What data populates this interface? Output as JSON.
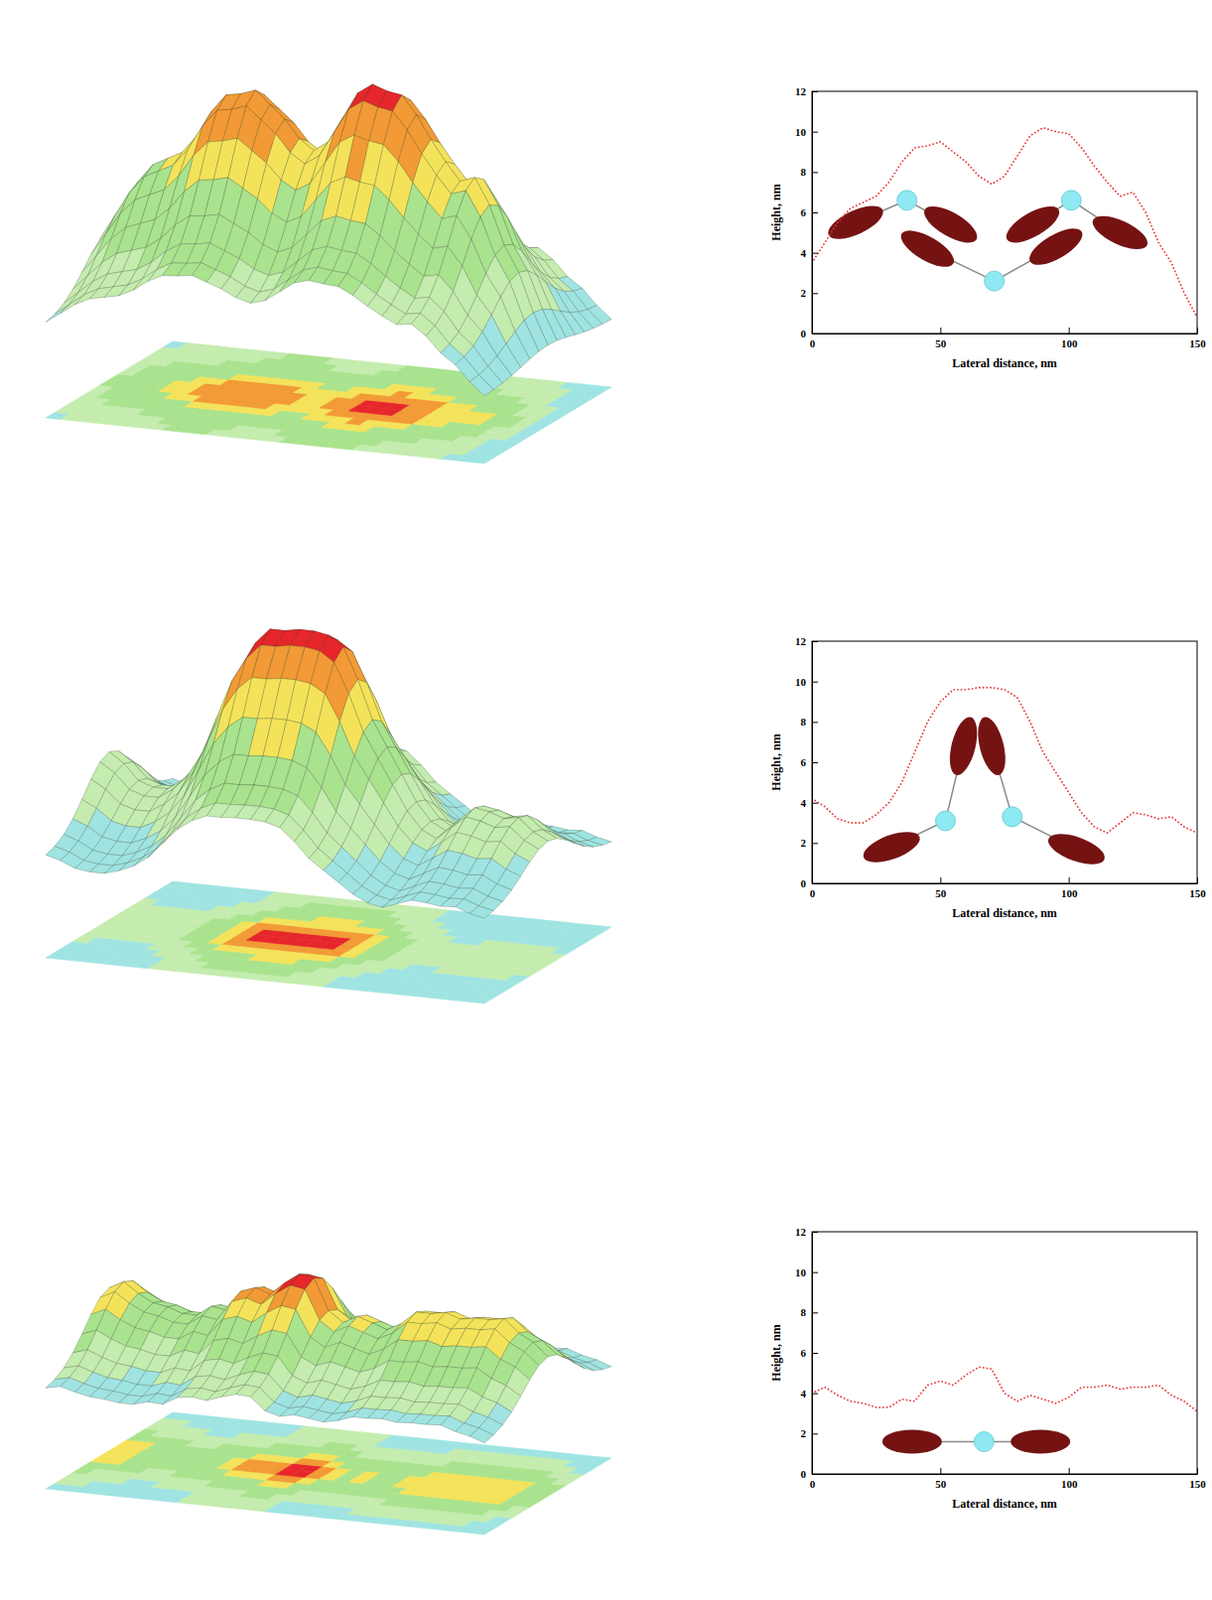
{
  "chart_data": [
    {
      "type": "line",
      "x_label": "Lateral distance, nm",
      "y_label": "Height, nm",
      "x": [
        0,
        5,
        10,
        15,
        20,
        25,
        30,
        35,
        40,
        45,
        50,
        55,
        60,
        65,
        70,
        75,
        80,
        85,
        90,
        95,
        100,
        105,
        110,
        115,
        120,
        125,
        130,
        135,
        140,
        145,
        150
      ],
      "series": [
        {
          "color": "#e83a3a",
          "line_style": "dotted",
          "values": [
            3.5,
            4.5,
            5.5,
            6.2,
            6.5,
            6.8,
            7.5,
            8.5,
            9.2,
            9.3,
            9.5,
            9.0,
            8.5,
            7.8,
            7.4,
            7.8,
            8.8,
            9.8,
            10.2,
            10.0,
            9.9,
            9.2,
            8.3,
            7.5,
            6.8,
            7.0,
            6.0,
            4.5,
            3.5,
            2.0,
            0.8
          ]
        }
      ],
      "xlim": [
        0,
        150
      ],
      "ylim": [
        0,
        12
      ],
      "xticks": [
        0,
        50,
        100,
        150
      ],
      "yticks": [
        0,
        2,
        4,
        6,
        8,
        10,
        12
      ]
    },
    {
      "type": "line",
      "x_label": "Lateral distance, nm",
      "y_label": "Height, nm",
      "x": [
        0,
        5,
        10,
        15,
        20,
        25,
        30,
        35,
        40,
        45,
        50,
        55,
        60,
        65,
        70,
        75,
        80,
        85,
        90,
        95,
        100,
        105,
        110,
        115,
        120,
        125,
        130,
        135,
        140,
        145,
        150
      ],
      "series": [
        {
          "color": "#e83a3a",
          "line_style": "dotted",
          "values": [
            4.2,
            3.8,
            3.2,
            3.0,
            3.0,
            3.4,
            4.0,
            5.0,
            6.5,
            8.0,
            9.0,
            9.6,
            9.6,
            9.7,
            9.7,
            9.6,
            9.2,
            8.0,
            6.5,
            5.5,
            4.5,
            3.5,
            2.8,
            2.5,
            3.0,
            3.5,
            3.4,
            3.2,
            3.3,
            2.8,
            2.5
          ]
        }
      ],
      "xlim": [
        0,
        150
      ],
      "ylim": [
        0,
        12
      ],
      "xticks": [
        0,
        50,
        100,
        150
      ],
      "yticks": [
        0,
        2,
        4,
        6,
        8,
        10,
        12
      ]
    },
    {
      "type": "line",
      "x_label": "Lateral distance, nm",
      "y_label": "Height, nm",
      "x": [
        0,
        5,
        10,
        15,
        20,
        25,
        30,
        35,
        40,
        45,
        50,
        55,
        60,
        65,
        70,
        75,
        80,
        85,
        90,
        95,
        100,
        105,
        110,
        115,
        120,
        125,
        130,
        135,
        140,
        145,
        150
      ],
      "series": [
        {
          "color": "#e83a3a",
          "line_style": "dotted",
          "values": [
            4.0,
            4.3,
            3.9,
            3.6,
            3.5,
            3.3,
            3.3,
            3.7,
            3.6,
            4.4,
            4.6,
            4.4,
            4.9,
            5.3,
            5.2,
            4.0,
            3.6,
            3.9,
            3.7,
            3.5,
            3.8,
            4.3,
            4.3,
            4.4,
            4.2,
            4.3,
            4.3,
            4.4,
            3.9,
            3.6,
            3.1
          ]
        }
      ],
      "xlim": [
        0,
        150
      ],
      "ylim": [
        0,
        12
      ],
      "xticks": [
        0,
        50,
        100,
        150
      ],
      "yticks": [
        0,
        2,
        4,
        6,
        8,
        10,
        12
      ]
    }
  ]
}
